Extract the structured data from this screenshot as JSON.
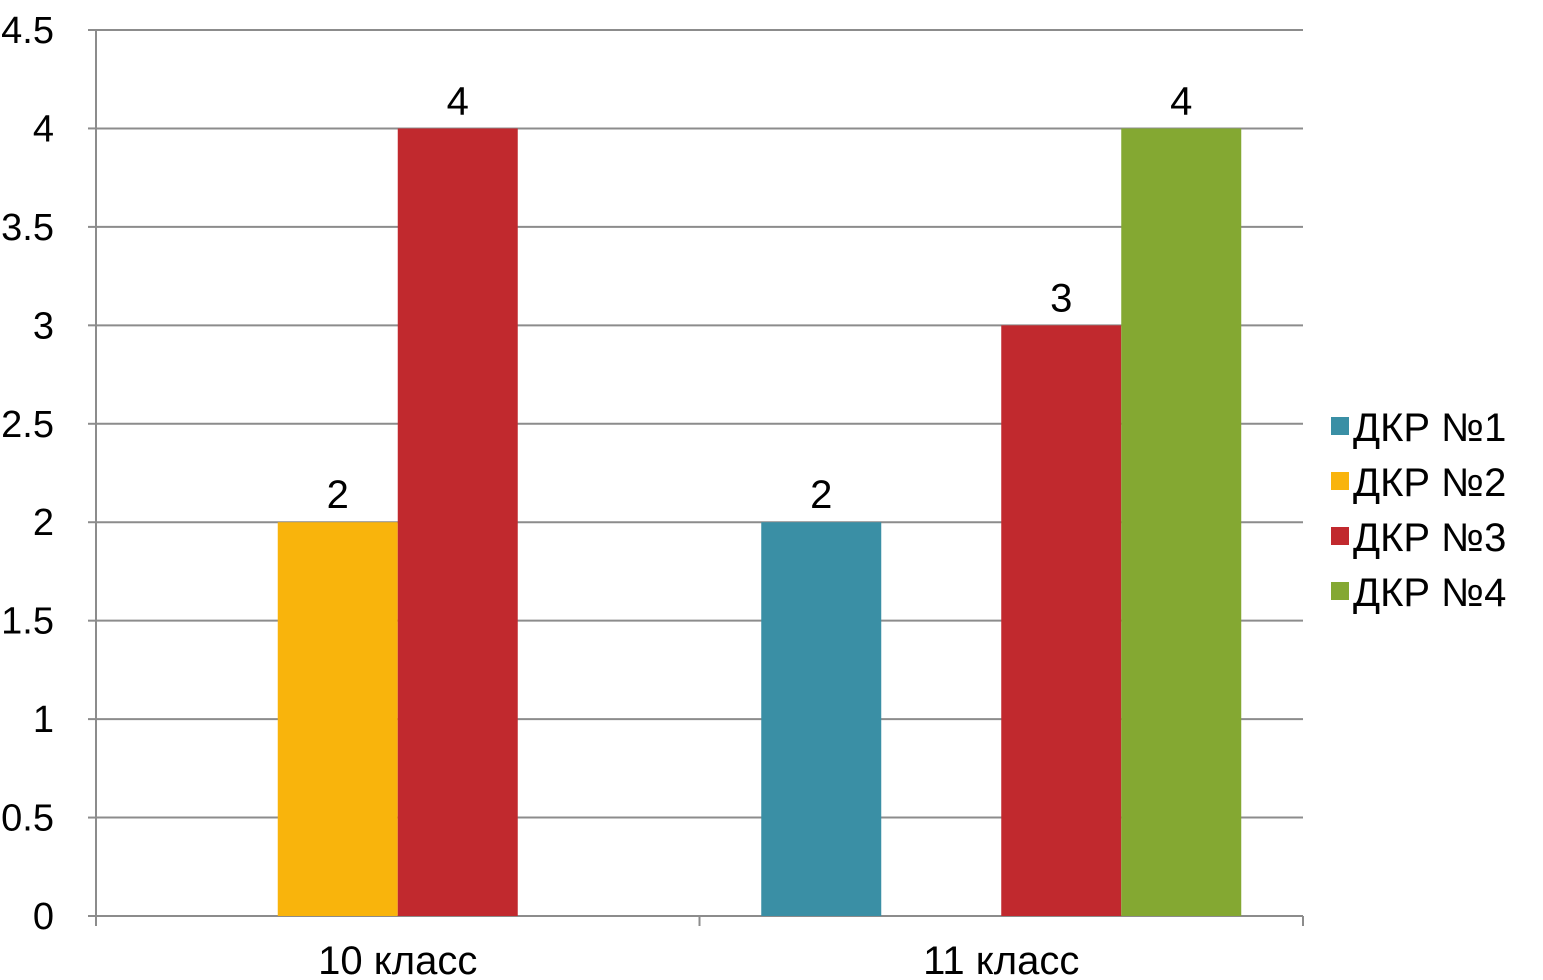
{
  "chart_data": {
    "type": "bar",
    "title": "",
    "xlabel": "",
    "ylabel": "",
    "categories": [
      "10 класс",
      "11 класс"
    ],
    "series": [
      {
        "name": "ДКР №1",
        "color": "#3a8fa5",
        "values": [
          0,
          2
        ]
      },
      {
        "name": "ДКР №2",
        "color": "#f9b40c",
        "values": [
          2,
          0
        ]
      },
      {
        "name": "ДКР №3",
        "color": "#c1292e",
        "values": [
          4,
          3
        ]
      },
      {
        "name": "ДКР №4",
        "color": "#84a832",
        "values": [
          0,
          4
        ]
      }
    ],
    "ylim": [
      0,
      4.5
    ],
    "yticks": [
      "0",
      "0.5",
      "1",
      "1.5",
      "2",
      "2.5",
      "3",
      "3.5",
      "4",
      "4.5"
    ],
    "data_labels": true,
    "grid": true,
    "legend_position": "right"
  }
}
